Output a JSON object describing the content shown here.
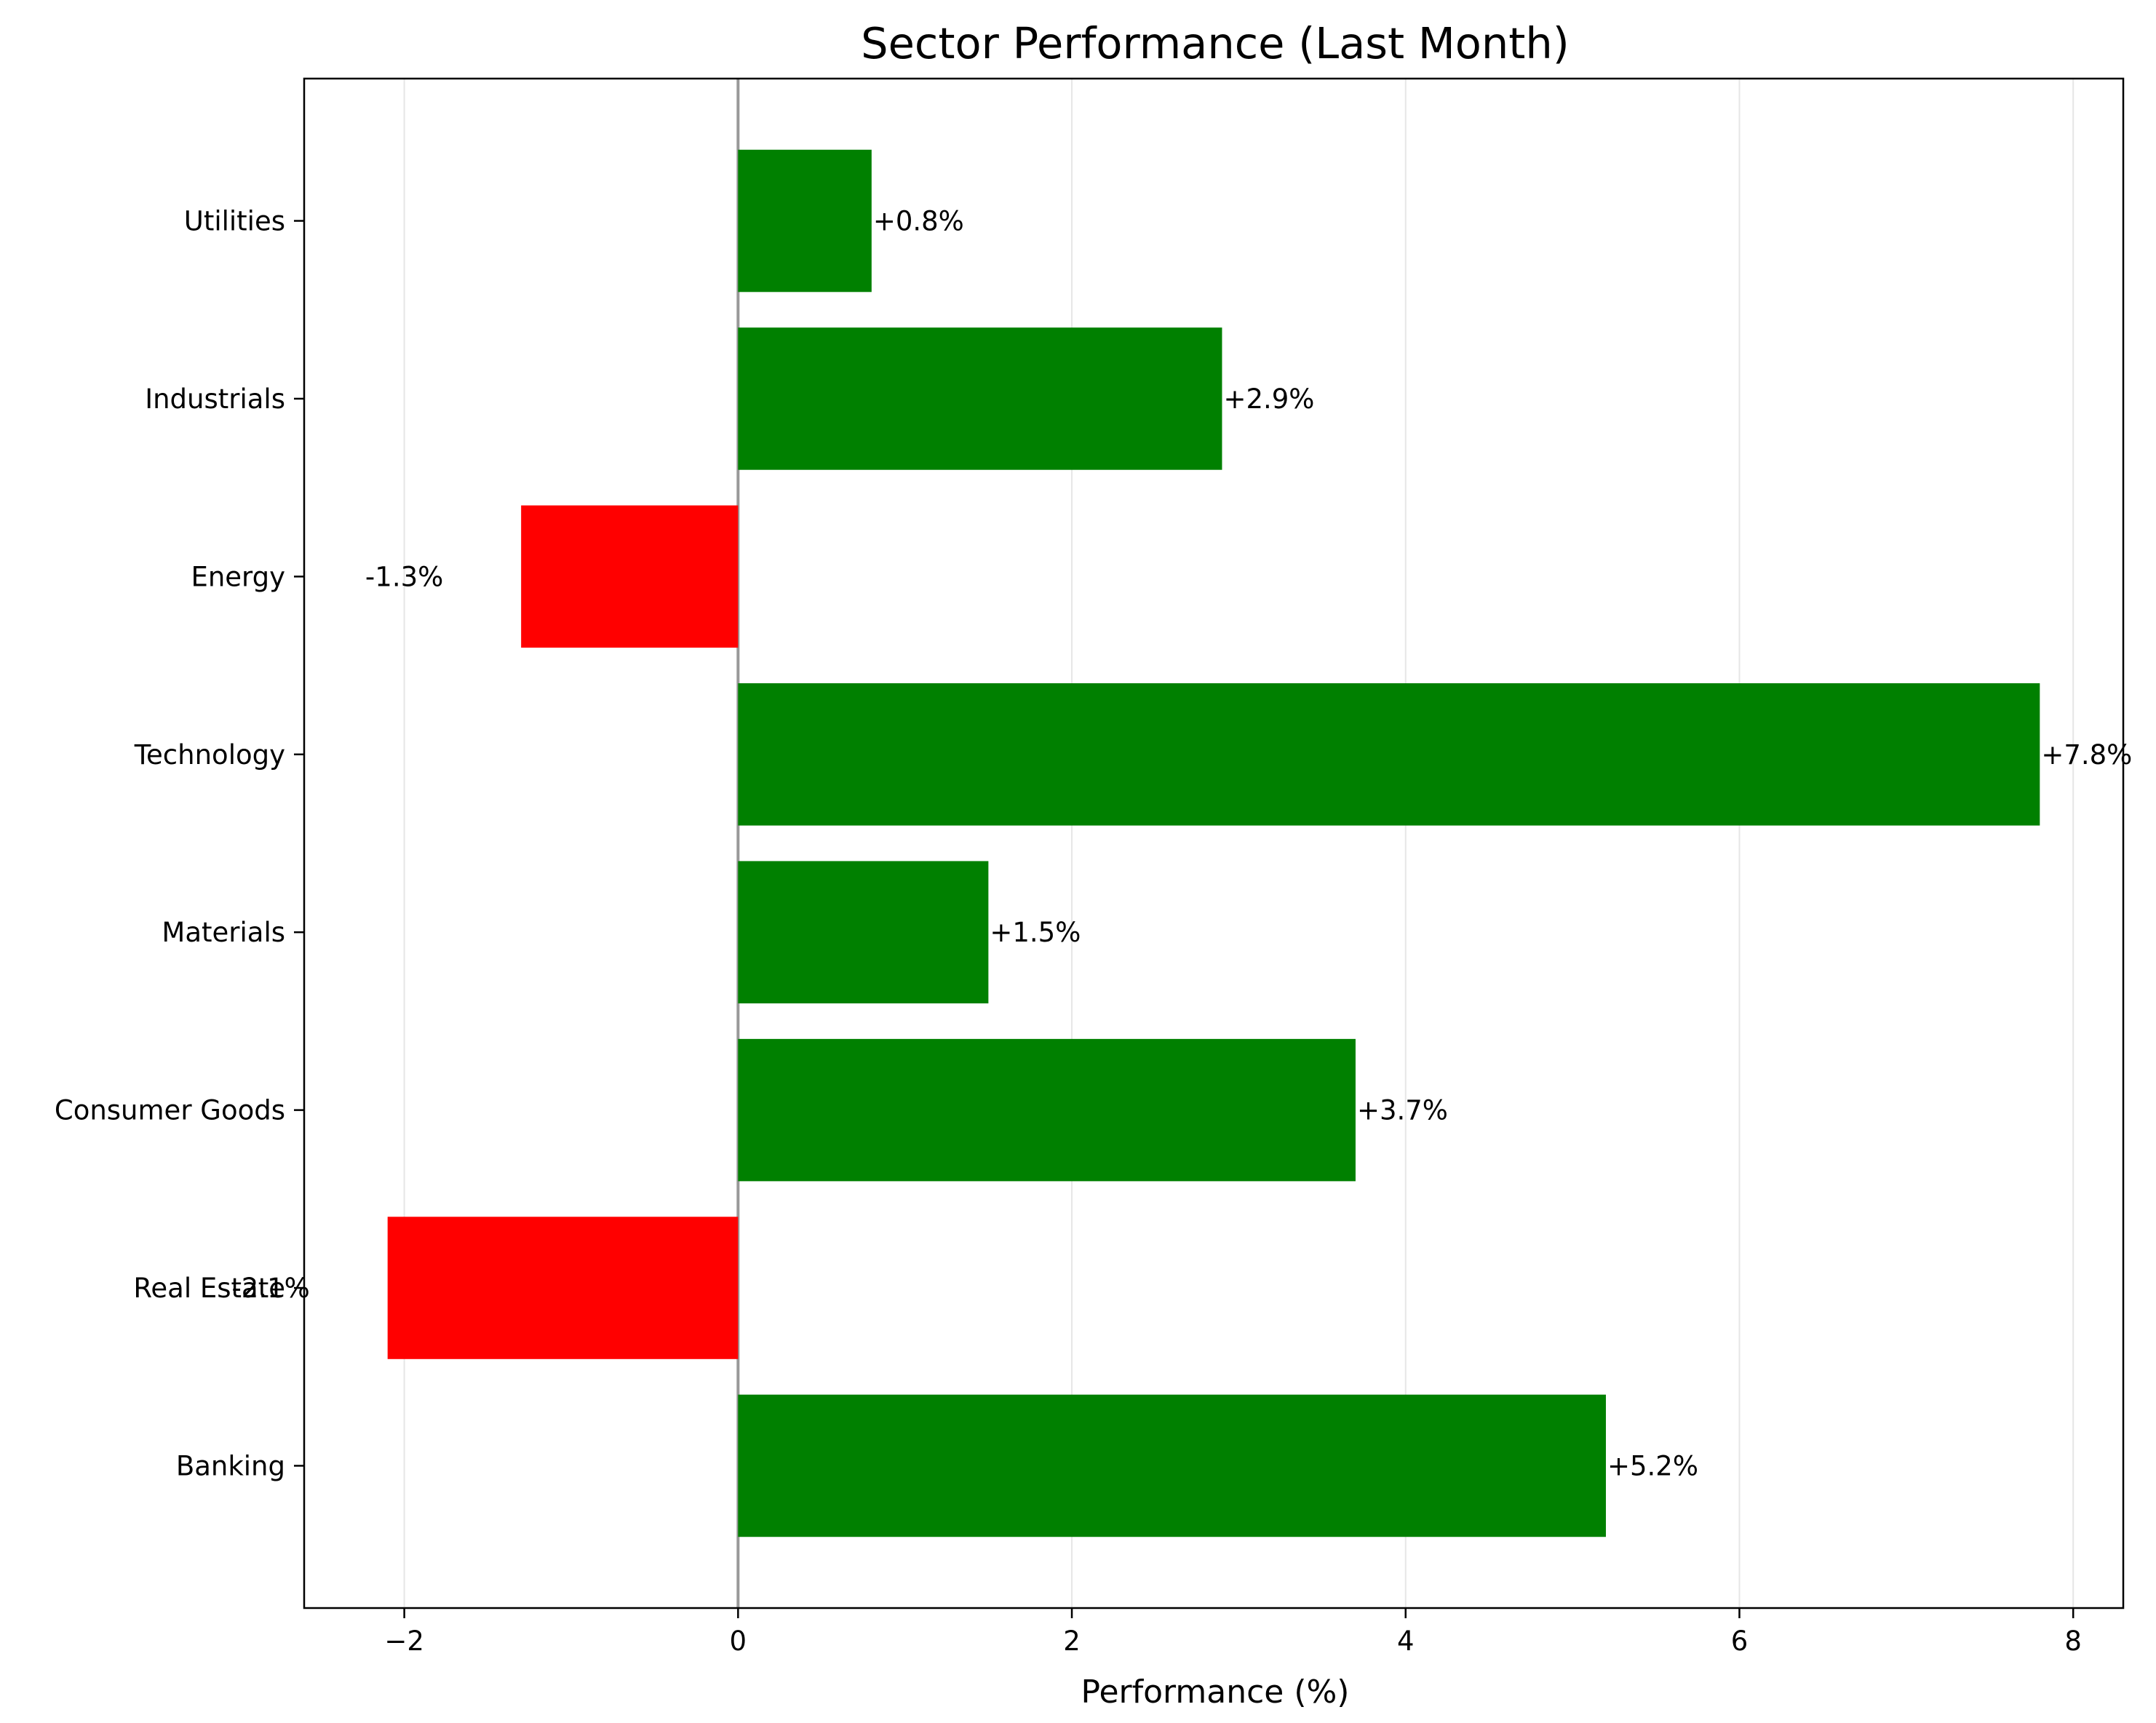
{
  "chart_data": {
    "type": "bar",
    "orientation": "horizontal",
    "title": "Sector Performance (Last Month)",
    "xlabel": "Performance (%)",
    "ylabel": "",
    "categories": [
      "Banking",
      "Real Estate",
      "Consumer Goods",
      "Materials",
      "Technology",
      "Energy",
      "Industrials",
      "Utilities"
    ],
    "values": [
      5.2,
      -2.1,
      3.7,
      1.5,
      7.8,
      -1.3,
      2.9,
      0.8
    ],
    "data_labels": [
      "+5.2%",
      "-2.1%",
      "+3.7%",
      "+1.5%",
      "+7.8%",
      "-1.3%",
      "+2.9%",
      "+0.8%"
    ],
    "xlim": [
      -2.6,
      8.3
    ],
    "xticks": [
      -2,
      0,
      2,
      4,
      6,
      8
    ],
    "xtick_labels": [
      "−2",
      "0",
      "2",
      "4",
      "6",
      "8"
    ],
    "grid": "vertical",
    "legend": "none",
    "colors": {
      "positive": "#008000",
      "negative": "#ff0000",
      "zero_line": "#999999",
      "grid": "#e6e6e6",
      "axes": "#000000"
    }
  }
}
